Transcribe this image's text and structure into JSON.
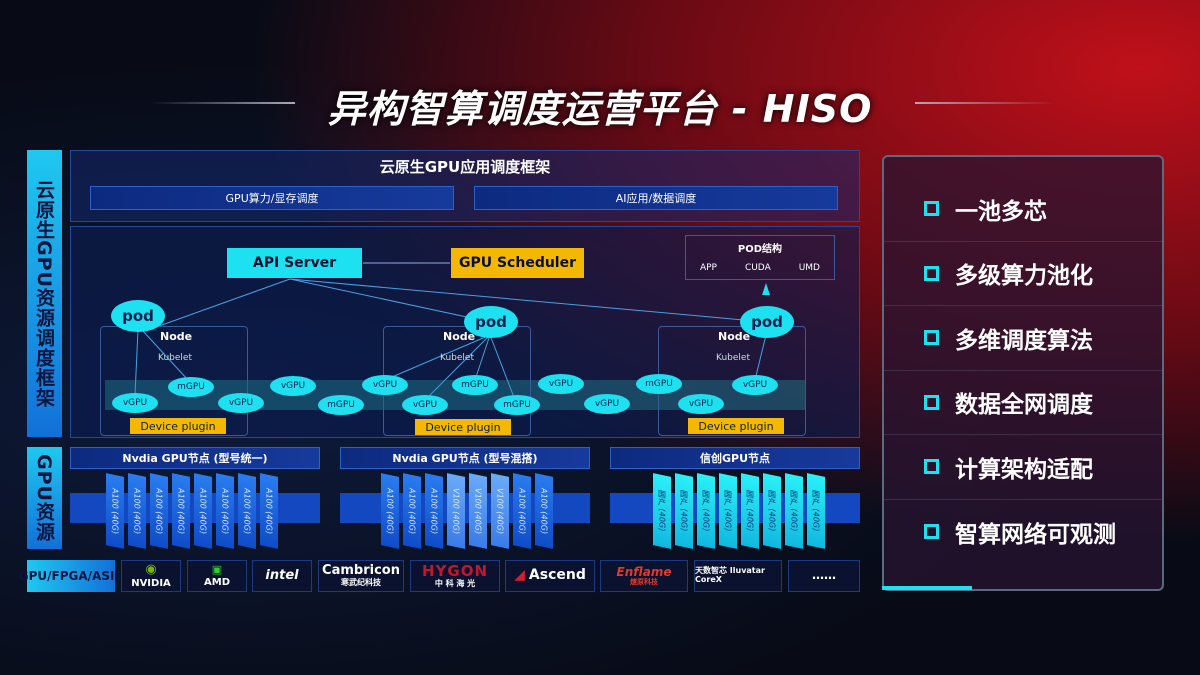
{
  "title": "异构智算调度运营平台 - HISO",
  "left_labels": {
    "framework": "云原生GPU资源调度框架",
    "resources": "GPU资源",
    "hardware": "GPU/FPGA/ASIC"
  },
  "framework": {
    "title": "云原生GPU应用调度框架",
    "bar_left": "GPU算力/显存调度",
    "bar_right": "AI应用/数据调度"
  },
  "api_server": "API Server",
  "gpu_scheduler": "GPU Scheduler",
  "pod_structure": {
    "title": "POD结构",
    "items": [
      "APP",
      "CUDA",
      "UMD"
    ]
  },
  "pod_label": "pod",
  "node_label": "Node",
  "kubelet_label": "Kubelet",
  "device_plugin": "Device plugin",
  "vgpu": "vGPU",
  "mgpu": "mGPU",
  "gpu_nodes": [
    {
      "title": "Nvdia GPU节点 (型号统一)",
      "chip": "A100 (40G)"
    },
    {
      "title": "Nvdia GPU节点 (型号混搭)",
      "chip": "A100 (40G)",
      "chip_alt": "V100 (40G)"
    },
    {
      "title": "信创GPU节点",
      "chip": "国产 (40G)"
    }
  ],
  "vendors": [
    "NVIDIA",
    "AMD",
    "intel",
    "Cambricon",
    "HYGON",
    "Ascend",
    "Enflame",
    "天数智芯 Iluvatar CoreX",
    "……"
  ],
  "vendor_sub": {
    "Cambricon": "寒武纪科技",
    "HYGON": "中 科 海 光",
    "Enflame": "燧原科技"
  },
  "features": [
    "一池多芯",
    "多级算力池化",
    "多维调度算法",
    "数据全网调度",
    "计算架构适配",
    "智算网络可观测"
  ],
  "colors": {
    "cyan": "#1de0f0",
    "orange": "#f5b800",
    "blue": "#1270d8"
  }
}
